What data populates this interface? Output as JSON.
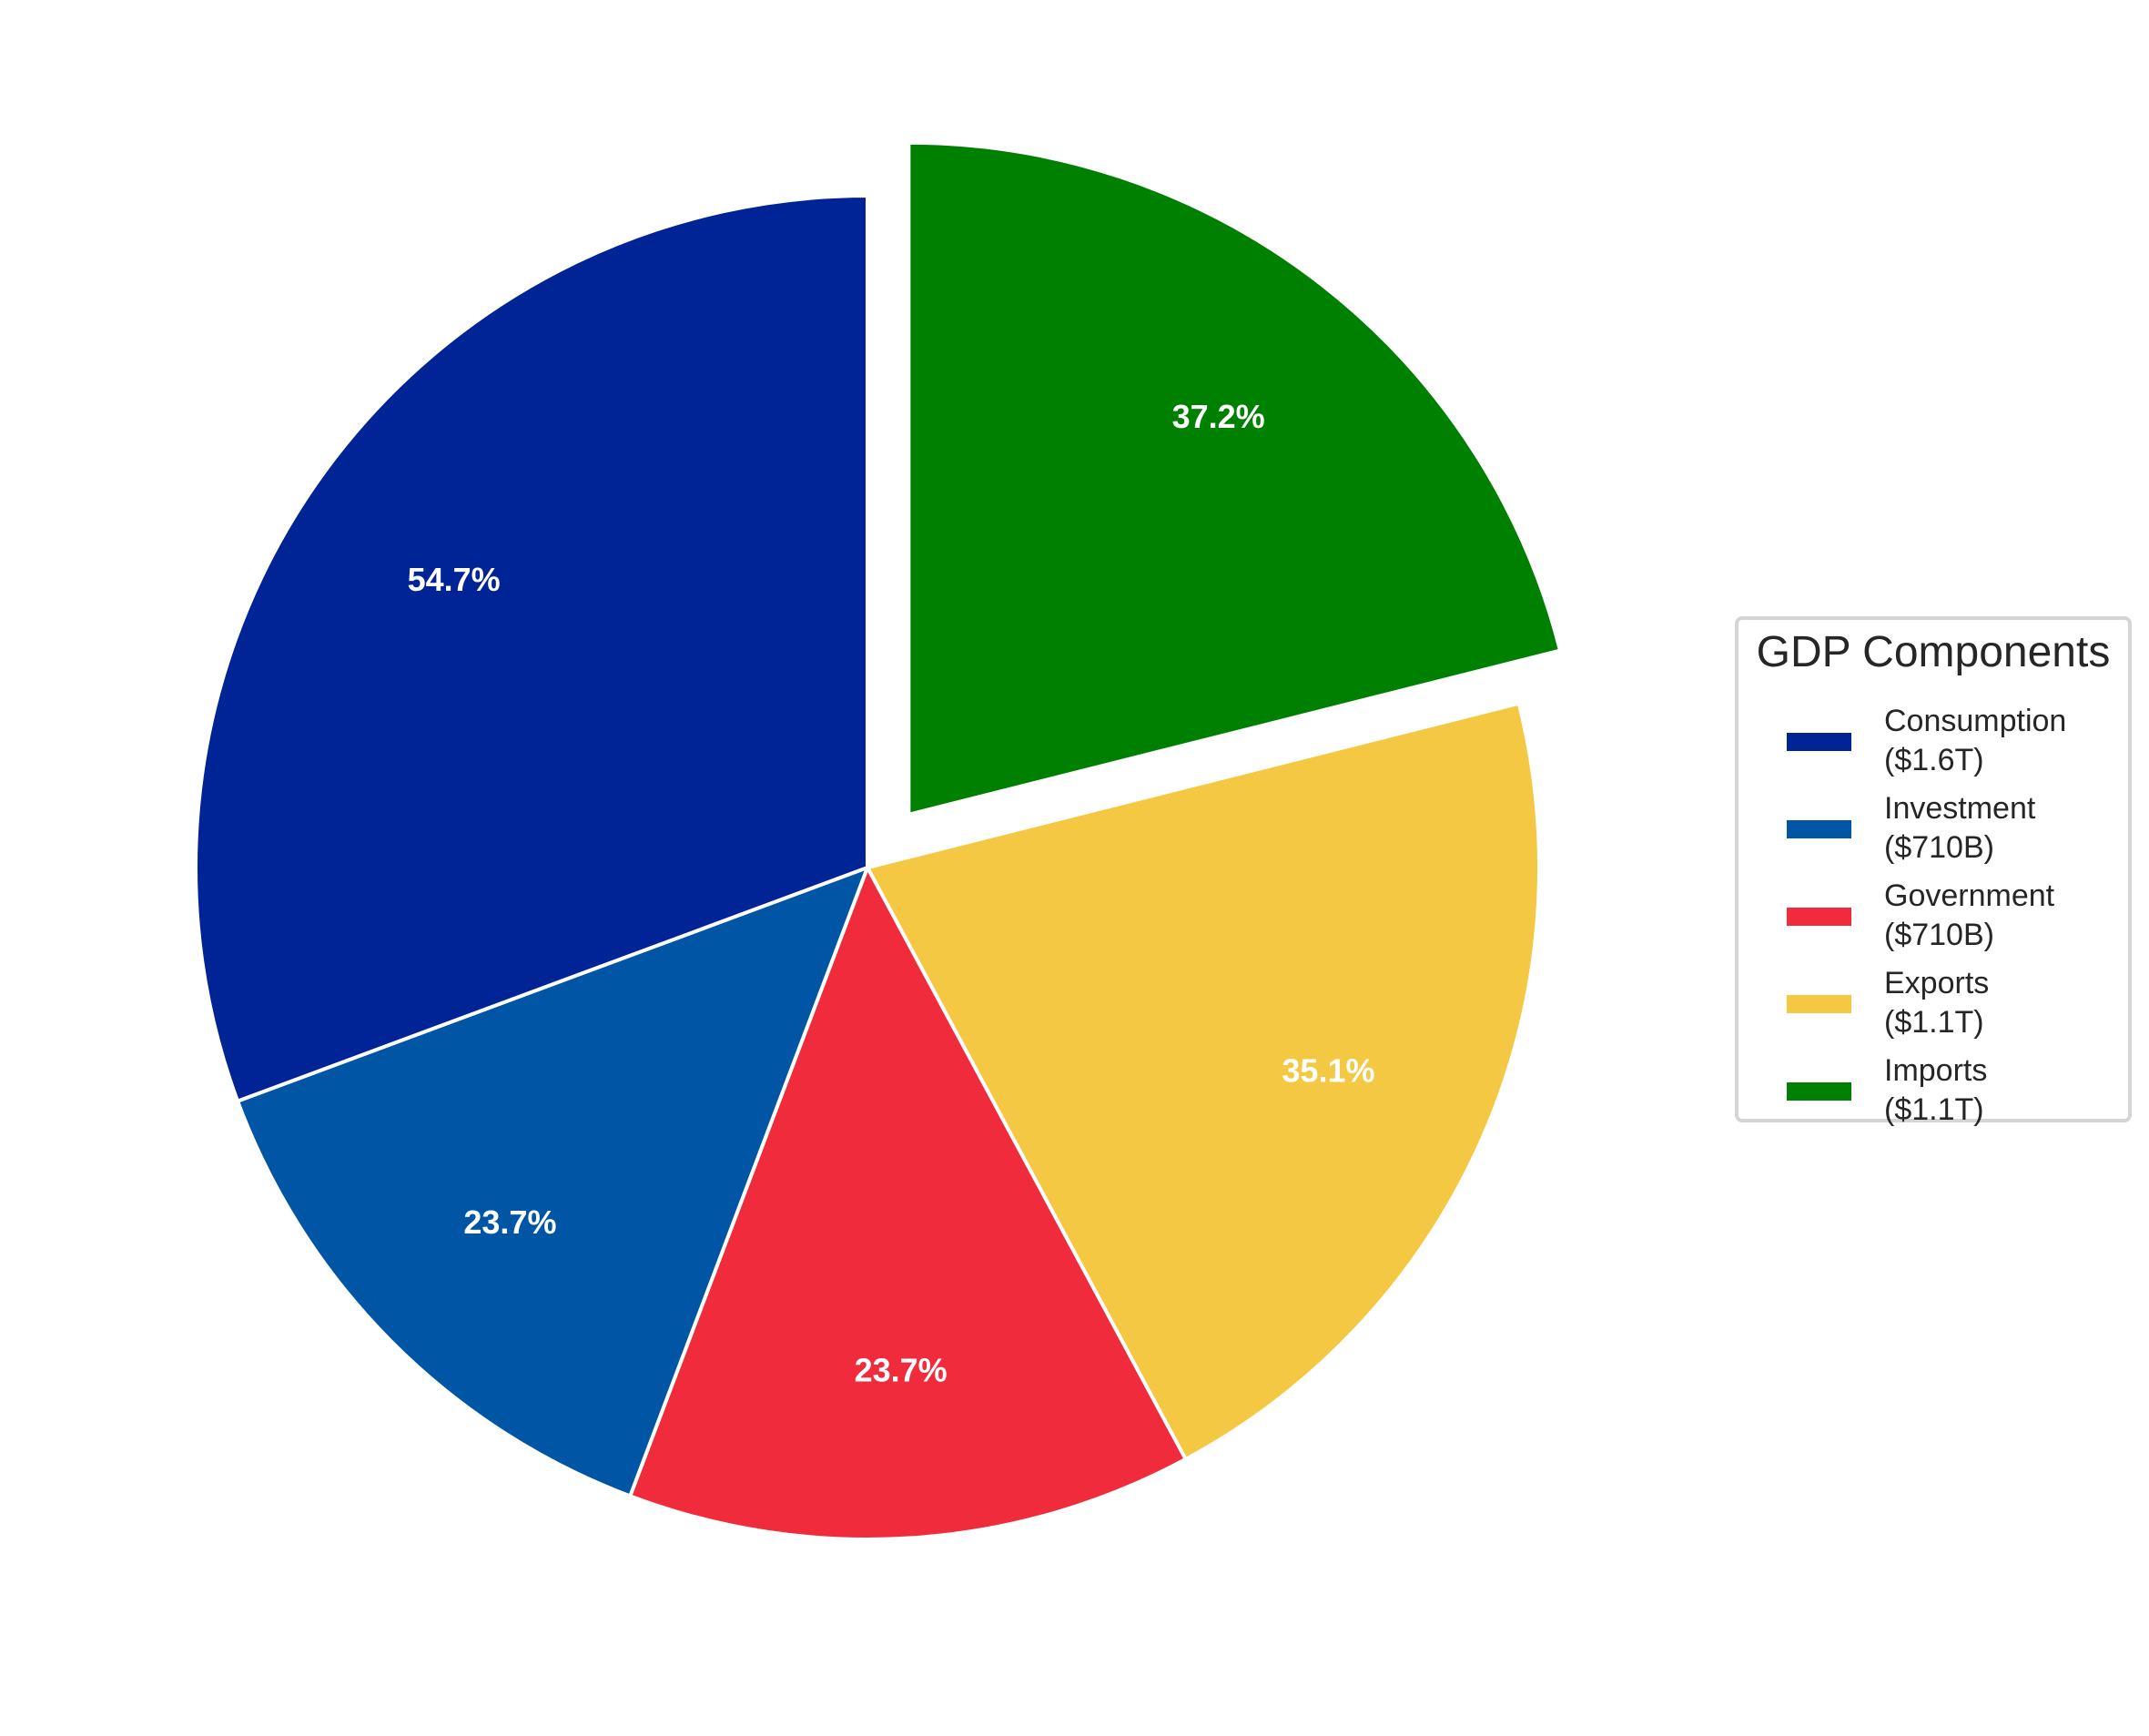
{
  "chart_data": {
    "type": "pie",
    "title": "",
    "legend_title": "GDP Components",
    "legend_position": "center right",
    "start_angle_deg": 90,
    "direction": "clockwise",
    "categories": [
      "Consumption",
      "Investment",
      "Government",
      "Exports",
      "Imports"
    ],
    "values": [
      1.6,
      0.71,
      0.71,
      1.1,
      1.1
    ],
    "value_units": "trillions USD",
    "value_labels": [
      "$1.6T",
      "$710B",
      "$710B",
      "$1.1T",
      "$1.1T"
    ],
    "legend_labels": [
      "Consumption\n($1.6T)",
      "Investment\n($710B)",
      "Government\n($710B)",
      "Exports\n($1.1T)",
      "Imports\n($1.1T)"
    ],
    "pct_labels": [
      "54.7%",
      "23.7%",
      "23.7%",
      "35.1%",
      "37.2%"
    ],
    "colors": [
      "#002395",
      "#0055a4",
      "#ef2b3c",
      "#f4c842",
      "#008000"
    ],
    "explode": [
      0,
      0,
      0,
      0,
      0.1
    ],
    "wedge_edgecolor": "#ffffff"
  },
  "legend": {
    "title": "GDP Components",
    "items": [
      {
        "name": "Consumption",
        "value": "($1.6T)",
        "color": "#002395"
      },
      {
        "name": "Investment",
        "value": "($710B)",
        "color": "#0055a4"
      },
      {
        "name": "Government",
        "value": "($710B)",
        "color": "#ef2b3c"
      },
      {
        "name": "Exports",
        "value": "($1.1T)",
        "color": "#f4c842"
      },
      {
        "name": "Imports",
        "value": "($1.1T)",
        "color": "#008000"
      }
    ]
  }
}
